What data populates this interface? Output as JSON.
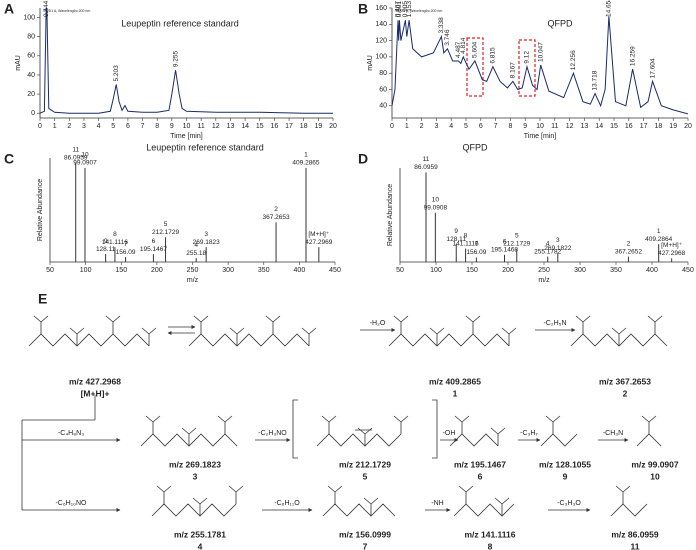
{
  "chart_data": [
    {
      "type": "line",
      "panel": "A",
      "title": "Leupeptin reference standard",
      "subtitle": "VWD1 A, Wavelength=200 nm",
      "x_label": "Time [min]",
      "y_label": "mAU",
      "color": "#1a2a6c",
      "x": [
        0,
        0.3,
        0.444,
        0.6,
        1,
        2,
        3,
        4,
        4.8,
        5.0,
        5.203,
        5.4,
        5.6,
        5.8,
        6,
        7,
        8,
        8.8,
        9.0,
        9.255,
        9.5,
        9.7,
        10,
        12,
        15,
        18,
        20
      ],
      "values": [
        0,
        2,
        130,
        5,
        1,
        0,
        0,
        0,
        2,
        15,
        30,
        12,
        3,
        8,
        2,
        1,
        1,
        3,
        20,
        45,
        20,
        5,
        2,
        1,
        1,
        0,
        0
      ],
      "peaks": [
        0.444,
        5.203,
        9.255
      ],
      "xlim": [
        0,
        20
      ],
      "ylim": [
        -5,
        110
      ],
      "xticks": [
        0,
        1,
        2,
        3,
        4,
        5,
        6,
        7,
        8,
        9,
        10,
        11,
        12,
        13,
        14,
        15,
        16,
        17,
        18,
        19,
        20
      ],
      "yticks": [
        0,
        20,
        40,
        60,
        80,
        100
      ]
    },
    {
      "type": "line",
      "panel": "B",
      "title": "QFPD",
      "subtitle": "VWD1 A, Wavelength=200 nm",
      "x_label": "Time [min]",
      "y_label": "mAU",
      "color": "#1a2a6c",
      "x": [
        0,
        0.2,
        0.407,
        0.45,
        0.501,
        0.6,
        0.905,
        1.0,
        1.153,
        1.4,
        2,
        2.8,
        3.338,
        3.5,
        3.746,
        4.1,
        4.487,
        4.65,
        4.814,
        5.2,
        5.604,
        6.1,
        6.4,
        6.815,
        7.3,
        7.8,
        8.167,
        8.5,
        8.8,
        9.12,
        9.5,
        9.8,
        10.047,
        10.6,
        11.6,
        12.256,
        12.9,
        13.4,
        13.718,
        14.1,
        14.4,
        14.654,
        15.1,
        15.8,
        16.259,
        16.8,
        17.3,
        17.604,
        18.2,
        19,
        20
      ],
      "values": [
        40,
        60,
        145,
        120,
        145,
        120,
        145,
        125,
        145,
        110,
        100,
        105,
        125,
        105,
        110,
        95,
        95,
        92,
        100,
        85,
        95,
        72,
        70,
        88,
        70,
        62,
        70,
        60,
        62,
        88,
        65,
        60,
        90,
        58,
        50,
        80,
        45,
        42,
        55,
        40,
        60,
        150,
        45,
        40,
        85,
        38,
        45,
        70,
        40,
        35,
        30
      ],
      "peaks": [
        0.407,
        0.501,
        0.905,
        1.153,
        3.338,
        3.746,
        4.487,
        4.814,
        5.604,
        6.815,
        8.167,
        9.12,
        10.047,
        12.256,
        13.718,
        14.654,
        16.259,
        17.604
      ],
      "xlim": [
        0,
        20
      ],
      "ylim": [
        25,
        160
      ],
      "xticks": [
        0,
        1,
        2,
        3,
        4,
        5,
        6,
        7,
        8,
        9,
        10,
        11,
        12,
        13,
        14,
        15,
        16,
        17,
        18,
        19,
        20
      ],
      "yticks": [
        40,
        60,
        80,
        100,
        120,
        140,
        160
      ]
    },
    {
      "type": "stem",
      "panel": "C",
      "title": "Leupeptin reference standard",
      "x_label": "m/z",
      "y_label": "Relative Abundance",
      "color": "#333333",
      "x": [
        86.0959,
        99.0907,
        128.11,
        141.1116,
        156.09,
        195.1467,
        212.1729,
        255.18,
        269.1823,
        367.2653,
        409.2865,
        427.2969
      ],
      "values": [
        100,
        95,
        8,
        15,
        5,
        8,
        25,
        4,
        15,
        40,
        95,
        15
      ],
      "peak_ids": [
        "11",
        "10",
        "9",
        "8",
        "7",
        "6",
        "5",
        "4",
        "3",
        "2",
        "1",
        "[M+H]⁺"
      ],
      "xlim": [
        50,
        450
      ],
      "ylim": [
        0,
        105
      ],
      "xticks": [
        50,
        100,
        150,
        200,
        250,
        300,
        350,
        400,
        450
      ]
    },
    {
      "type": "stem",
      "panel": "D",
      "title": "QFPD",
      "x_label": "m/z",
      "y_label": "Relative Abundance",
      "color": "#333333",
      "x": [
        86.0959,
        99.0908,
        128.11,
        141.1116,
        156.09,
        195.1468,
        212.1729,
        255.1782,
        269.1822,
        367.2652,
        409.2864,
        427.2968
      ],
      "values": [
        100,
        55,
        20,
        15,
        5,
        8,
        15,
        6,
        10,
        6,
        20,
        4
      ],
      "peak_ids": [
        "11",
        "10",
        "9",
        "8",
        "7",
        "6",
        "5",
        "4",
        "3",
        "2",
        "1",
        "[M+H]⁺"
      ],
      "xlim": [
        50,
        450
      ],
      "ylim": [
        0,
        105
      ],
      "xticks": [
        50,
        100,
        150,
        200,
        250,
        300,
        350,
        400,
        450
      ]
    }
  ],
  "scheme": {
    "panel": "E",
    "compounds": [
      {
        "mz": "m/z 427.2968",
        "id": "[M+H]+"
      },
      {
        "mz": "m/z 409.2865",
        "id": "1"
      },
      {
        "mz": "m/z 367.2653",
        "id": "2"
      },
      {
        "mz": "m/z 269.1823",
        "id": "3"
      },
      {
        "mz": "m/z 212.1729",
        "id": "5"
      },
      {
        "mz": "m/z 195.1467",
        "id": "6"
      },
      {
        "mz": "m/z 128.1055",
        "id": "9"
      },
      {
        "mz": "m/z 99.0907",
        "id": "10"
      },
      {
        "mz": "m/z 255.1781",
        "id": "4"
      },
      {
        "mz": "m/z 156.0999",
        "id": "7"
      },
      {
        "mz": "m/z 141.1116",
        "id": "8"
      },
      {
        "mz": "m/z 86.0959",
        "id": "11"
      }
    ],
    "losses": [
      "-H₂O",
      "-C₂H₅N",
      "-C₄H₈N₃",
      "-C₂H₃NO",
      "-OH",
      "-C₃H₇",
      "-CH₃N",
      "-C₆H₁₀NO",
      "-C₆H₁₁O",
      "-NH",
      "-C₃H₃O"
    ]
  }
}
